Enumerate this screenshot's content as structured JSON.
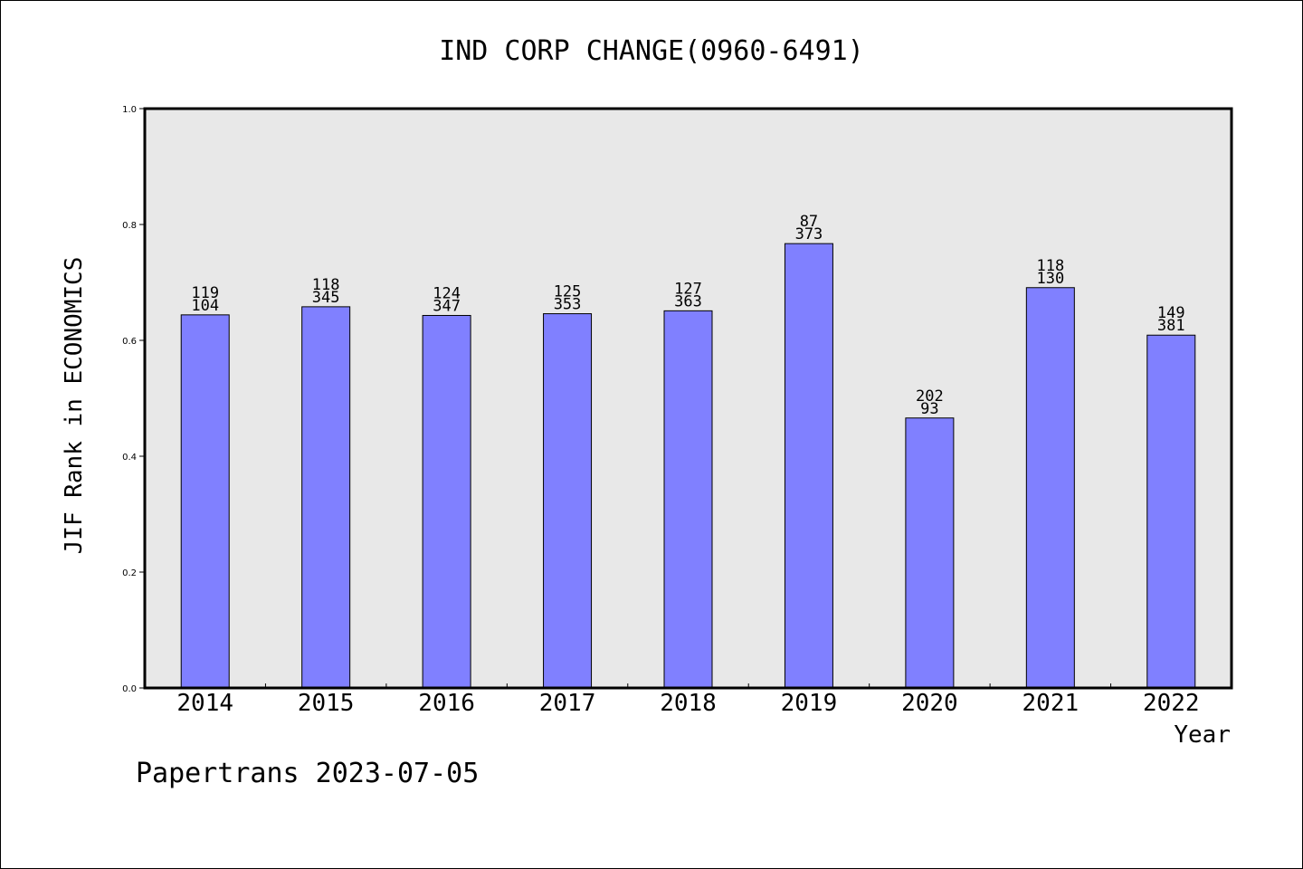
{
  "chart_data": {
    "type": "bar",
    "title": "IND CORP CHANGE(0960-6491)",
    "xlabel": "Year",
    "ylabel": "JIF Rank in ECONOMICS",
    "ylim": [
      0,
      1.0
    ],
    "yticks": [
      "0.0",
      "0.2",
      "0.4",
      "0.6",
      "0.8",
      "1.0"
    ],
    "categories": [
      "2014",
      "2015",
      "2016",
      "2017",
      "2018",
      "2019",
      "2020",
      "2021",
      "2022"
    ],
    "values": [
      0.644,
      0.658,
      0.643,
      0.646,
      0.651,
      0.767,
      0.466,
      0.691,
      0.609
    ],
    "label_top": [
      "119",
      "118",
      "124",
      "125",
      "127",
      "87",
      "202",
      "118",
      "149"
    ],
    "label_bottom": [
      "104",
      "345",
      "347",
      "353",
      "363",
      "373",
      "93",
      "130",
      "381"
    ],
    "bar_color": "#8080ff",
    "plot_background": "#e8e8e8",
    "grid": false
  },
  "footer": "Papertrans 2023-07-05"
}
